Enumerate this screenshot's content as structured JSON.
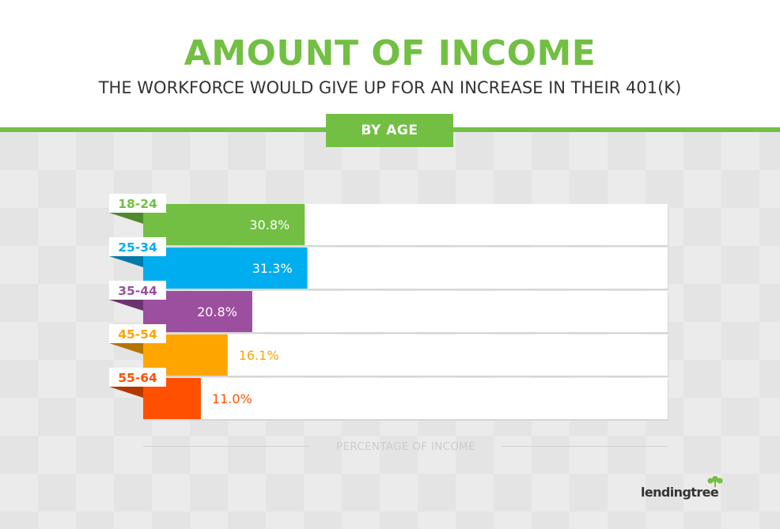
{
  "title": "AMOUNT OF INCOME",
  "subtitle": "THE WORKFORCE WOULD GIVE UP FOR AN INCREASE IN THEIR 401(K)",
  "badge": "BY AGE",
  "brand": "lendingtree",
  "colors": {
    "accent": "#72bf44",
    "text": "#333333",
    "track": "#ffffff",
    "background": "#ebebeb"
  },
  "chart_data": {
    "type": "bar",
    "orientation": "horizontal",
    "categories": [
      "18-24",
      "25-34",
      "35-44",
      "45-54",
      "55-64"
    ],
    "values": [
      30.8,
      31.3,
      20.8,
      16.1,
      11.0
    ],
    "value_labels": [
      "30.8%",
      "31.3%",
      "20.8%",
      "16.1%",
      "11.0%"
    ],
    "colors": [
      "#72bf44",
      "#00aeef",
      "#9b4f9e",
      "#ffa500",
      "#ff5000"
    ],
    "dark_colors": [
      "#4f8a2c",
      "#0079a8",
      "#6b3470",
      "#b37400",
      "#b33800"
    ],
    "xlabel": "PERCENTAGE OF INCOME",
    "xlim": [
      0,
      100
    ],
    "grid": false,
    "legend": "none"
  }
}
